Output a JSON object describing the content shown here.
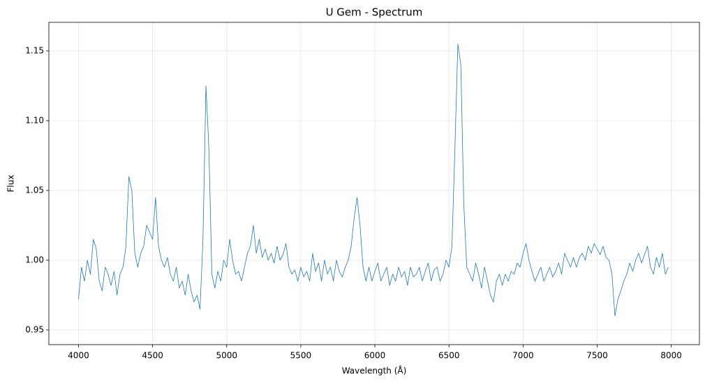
{
  "chart_data": {
    "type": "line",
    "title": "U Gem - Spectrum",
    "xlabel": "Wavelength (Å)",
    "ylabel": "Flux",
    "x": [
      4000,
      4020,
      4040,
      4060,
      4080,
      4100,
      4120,
      4140,
      4160,
      4180,
      4200,
      4220,
      4240,
      4260,
      4280,
      4300,
      4320,
      4340,
      4360,
      4380,
      4400,
      4420,
      4440,
      4460,
      4480,
      4500,
      4520,
      4540,
      4560,
      4580,
      4600,
      4620,
      4640,
      4660,
      4680,
      4700,
      4720,
      4740,
      4760,
      4780,
      4800,
      4820,
      4840,
      4860,
      4880,
      4900,
      4920,
      4940,
      4960,
      4980,
      5000,
      5020,
      5040,
      5060,
      5080,
      5100,
      5120,
      5140,
      5160,
      5180,
      5200,
      5220,
      5240,
      5260,
      5280,
      5300,
      5320,
      5340,
      5360,
      5380,
      5400,
      5420,
      5440,
      5460,
      5480,
      5500,
      5520,
      5540,
      5560,
      5580,
      5600,
      5620,
      5640,
      5660,
      5680,
      5700,
      5720,
      5740,
      5760,
      5780,
      5800,
      5820,
      5840,
      5860,
      5880,
      5900,
      5920,
      5940,
      5960,
      5980,
      6000,
      6020,
      6040,
      6060,
      6080,
      6100,
      6120,
      6140,
      6160,
      6180,
      6200,
      6220,
      6240,
      6260,
      6280,
      6300,
      6320,
      6340,
      6360,
      6380,
      6400,
      6420,
      6440,
      6460,
      6480,
      6500,
      6520,
      6540,
      6560,
      6580,
      6600,
      6620,
      6640,
      6660,
      6680,
      6700,
      6720,
      6740,
      6760,
      6780,
      6800,
      6820,
      6840,
      6860,
      6880,
      6900,
      6920,
      6940,
      6960,
      6980,
      7000,
      7020,
      7040,
      7060,
      7080,
      7100,
      7120,
      7140,
      7160,
      7180,
      7200,
      7220,
      7240,
      7260,
      7280,
      7300,
      7320,
      7340,
      7360,
      7380,
      7400,
      7420,
      7440,
      7460,
      7480,
      7500,
      7520,
      7540,
      7560,
      7580,
      7600,
      7620,
      7640,
      7660,
      7680,
      7700,
      7720,
      7740,
      7760,
      7780,
      7800,
      7820,
      7840,
      7860,
      7880,
      7900,
      7920,
      7940,
      7960,
      7980
    ],
    "series": [
      {
        "name": "U Gem",
        "color": "#1f77b4",
        "values": [
          0.972,
          0.995,
          0.985,
          1.0,
          0.99,
          1.015,
          1.008,
          0.985,
          0.978,
          0.995,
          0.99,
          0.982,
          0.992,
          0.975,
          0.99,
          0.995,
          1.01,
          1.06,
          1.05,
          1.005,
          0.995,
          1.005,
          1.01,
          1.025,
          1.02,
          1.015,
          1.045,
          1.01,
          1.0,
          0.995,
          1.002,
          0.99,
          0.985,
          0.995,
          0.98,
          0.985,
          0.975,
          0.99,
          0.978,
          0.97,
          0.975,
          0.965,
          1.015,
          1.125,
          1.08,
          0.99,
          0.98,
          0.992,
          0.985,
          1.0,
          0.995,
          1.015,
          1.0,
          0.99,
          0.992,
          0.985,
          0.995,
          1.005,
          1.01,
          1.025,
          1.005,
          1.015,
          1.002,
          1.008,
          1.0,
          1.005,
          0.998,
          1.01,
          1.0,
          1.004,
          1.012,
          0.995,
          0.99,
          0.993,
          0.985,
          0.995,
          0.988,
          0.992,
          0.985,
          1.005,
          0.992,
          0.998,
          0.985,
          1.0,
          0.99,
          0.995,
          0.985,
          1.0,
          0.992,
          0.988,
          0.995,
          1.0,
          1.01,
          1.03,
          1.045,
          1.025,
          0.995,
          0.985,
          0.995,
          0.985,
          0.992,
          0.998,
          0.985,
          0.99,
          0.995,
          0.982,
          0.99,
          0.985,
          0.995,
          0.988,
          0.992,
          0.982,
          0.995,
          0.988,
          0.99,
          0.995,
          0.985,
          0.992,
          0.998,
          0.985,
          0.993,
          0.995,
          0.985,
          0.99,
          1.0,
          0.995,
          1.01,
          1.08,
          1.155,
          1.14,
          1.04,
          0.995,
          0.99,
          0.985,
          0.998,
          0.99,
          0.98,
          0.995,
          0.985,
          0.975,
          0.97,
          0.985,
          0.99,
          0.982,
          0.99,
          0.985,
          0.992,
          0.99,
          0.998,
          0.995,
          1.005,
          1.012,
          1.0,
          0.992,
          0.985,
          0.99,
          0.995,
          0.985,
          0.99,
          0.995,
          0.988,
          0.992,
          0.998,
          0.99,
          1.005,
          1.0,
          0.995,
          1.002,
          0.995,
          1.002,
          1.005,
          1.0,
          1.01,
          1.005,
          1.012,
          1.008,
          1.004,
          1.01,
          1.002,
          1.0,
          0.99,
          0.96,
          0.972,
          0.978,
          0.985,
          0.99,
          0.998,
          0.992,
          1.0,
          1.005,
          0.998,
          1.004,
          1.01,
          0.995,
          0.99,
          1.002,
          0.995,
          1.005,
          0.99,
          0.995
        ]
      }
    ],
    "xlim": [
      3800,
      8190
    ],
    "ylim": [
      0.9395,
      1.1705
    ],
    "xticks": [
      4000,
      4500,
      5000,
      5500,
      6000,
      6500,
      7000,
      7500,
      8000
    ],
    "yticks": [
      0.95,
      {
        "value": 1,
        "label": "1.00"
      },
      1.05,
      {
        "value": 1.1,
        "label": "1.10"
      },
      1.15
    ],
    "grid": true
  }
}
